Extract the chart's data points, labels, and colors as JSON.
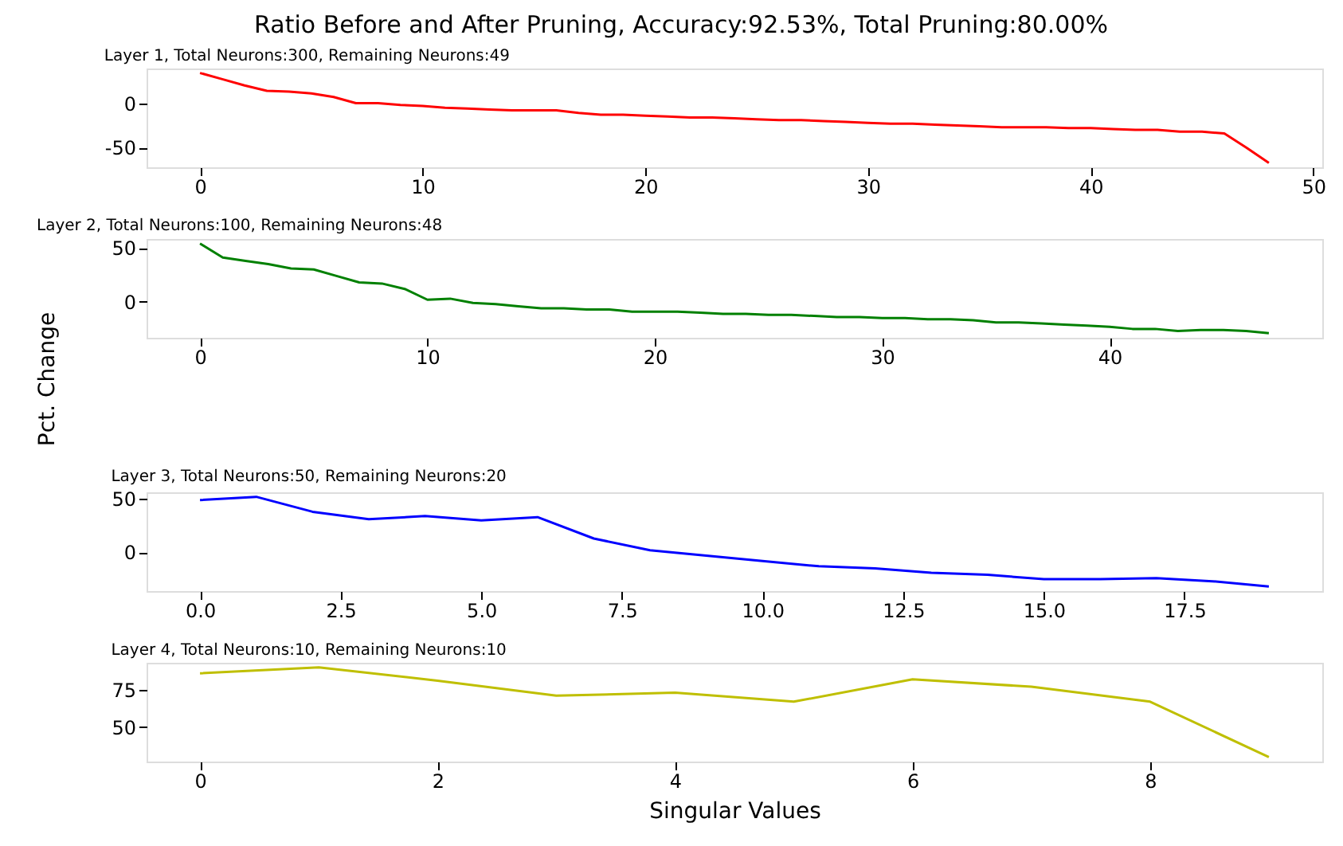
{
  "chart_data": [
    {
      "type": "line",
      "title": "Layer 1, Total Neurons:300, Remaining Neurons:49",
      "annotations": [
        "Ratio Before and After Pruning, Accuracy:92.53%, Total Pruning:80.00%"
      ],
      "x": [
        0,
        1,
        2,
        3,
        4,
        5,
        6,
        7,
        8,
        9,
        10,
        11,
        12,
        13,
        14,
        15,
        16,
        17,
        18,
        19,
        20,
        21,
        22,
        23,
        24,
        25,
        26,
        27,
        28,
        29,
        30,
        31,
        32,
        33,
        34,
        35,
        36,
        37,
        38,
        39,
        40,
        41,
        42,
        43,
        44,
        45,
        46,
        47,
        48
      ],
      "series": [
        {
          "color": "#ff0000",
          "values": [
            34,
            27,
            20,
            14,
            13,
            11,
            7,
            0,
            0,
            -2,
            -3,
            -5,
            -6,
            -7,
            -8,
            -8,
            -8,
            -11,
            -13,
            -13,
            -14,
            -15,
            -16,
            -16,
            -17,
            -18,
            -19,
            -19,
            -20,
            -21,
            -22,
            -23,
            -23,
            -24,
            -25,
            -26,
            -27,
            -27,
            -27,
            -28,
            -28,
            -29,
            -30,
            -30,
            -32,
            -32,
            -34,
            -50,
            -67
          ]
        }
      ],
      "xlim": [
        -2.4,
        50.4
      ],
      "xticks": [
        0,
        10,
        20,
        30,
        40,
        50
      ],
      "ylim": [
        -72,
        39
      ],
      "yticks": [
        -50,
        0
      ],
      "grid": false
    },
    {
      "type": "line",
      "title": "Layer 2, Total Neurons:100, Remaining Neurons:48",
      "ylabel": "Pct. Change",
      "x": [
        0,
        1,
        2,
        3,
        4,
        5,
        6,
        7,
        8,
        9,
        10,
        11,
        12,
        13,
        14,
        15,
        16,
        17,
        18,
        19,
        20,
        21,
        22,
        23,
        24,
        25,
        26,
        27,
        28,
        29,
        30,
        31,
        32,
        33,
        34,
        35,
        36,
        37,
        38,
        39,
        40,
        41,
        42,
        43,
        44,
        45,
        46,
        47
      ],
      "series": [
        {
          "color": "#008000",
          "values": [
            54,
            41,
            38,
            35,
            31,
            30,
            24,
            18,
            17,
            12,
            2,
            3,
            -1,
            -2,
            -4,
            -6,
            -6,
            -7,
            -7,
            -9,
            -9,
            -9,
            -10,
            -11,
            -11,
            -12,
            -12,
            -13,
            -14,
            -14,
            -15,
            -15,
            -16,
            -16,
            -17,
            -19,
            -19,
            -20,
            -21,
            -22,
            -23,
            -25,
            -25,
            -27,
            -26,
            -26,
            -27,
            -29
          ]
        }
      ],
      "xlim": [
        -2.35,
        49.35
      ],
      "xticks": [
        0,
        10,
        20,
        30,
        40
      ],
      "ylim": [
        -33.2,
        58.2
      ],
      "yticks": [
        0,
        50
      ],
      "grid": false
    },
    {
      "type": "line",
      "title": "Layer 3, Total Neurons:50, Remaining Neurons:20",
      "x": [
        0,
        1,
        2,
        3,
        4,
        5,
        6,
        7,
        8,
        9,
        10,
        11,
        12,
        13,
        14,
        15,
        16,
        17,
        18,
        19
      ],
      "series": [
        {
          "color": "#0000ff",
          "values": [
            49,
            52,
            38,
            31,
            34,
            30,
            33,
            13,
            2,
            -3,
            -8,
            -13,
            -15,
            -19,
            -21,
            -25,
            -25,
            -24,
            -27,
            -32
          ]
        }
      ],
      "xlim": [
        -0.95,
        19.95
      ],
      "xticks": [
        {
          "value": 0,
          "label": "0.0"
        },
        2.5,
        {
          "value": 5,
          "label": "5.0"
        },
        7.5,
        {
          "value": 10,
          "label": "10.0"
        },
        12.5,
        {
          "value": 15,
          "label": "15.0"
        },
        17.5
      ],
      "ylim": [
        -36.2,
        56.2
      ],
      "yticks": [
        0,
        50
      ],
      "grid": false
    },
    {
      "type": "line",
      "title": "Layer 4, Total Neurons:10, Remaining Neurons:10",
      "xlabel": "Singular Values",
      "x": [
        0,
        1,
        2,
        3,
        4,
        5,
        6,
        7,
        8,
        9
      ],
      "series": [
        {
          "color": "#bfbf00",
          "values": [
            86,
            90,
            81,
            71,
            73,
            67,
            82,
            77,
            67,
            30
          ]
        }
      ],
      "xlim": [
        -0.45,
        9.45
      ],
      "xticks": [
        0,
        2,
        4,
        6,
        8
      ],
      "ylim": [
        27,
        93
      ],
      "yticks": [
        50,
        75
      ],
      "grid": false
    }
  ]
}
